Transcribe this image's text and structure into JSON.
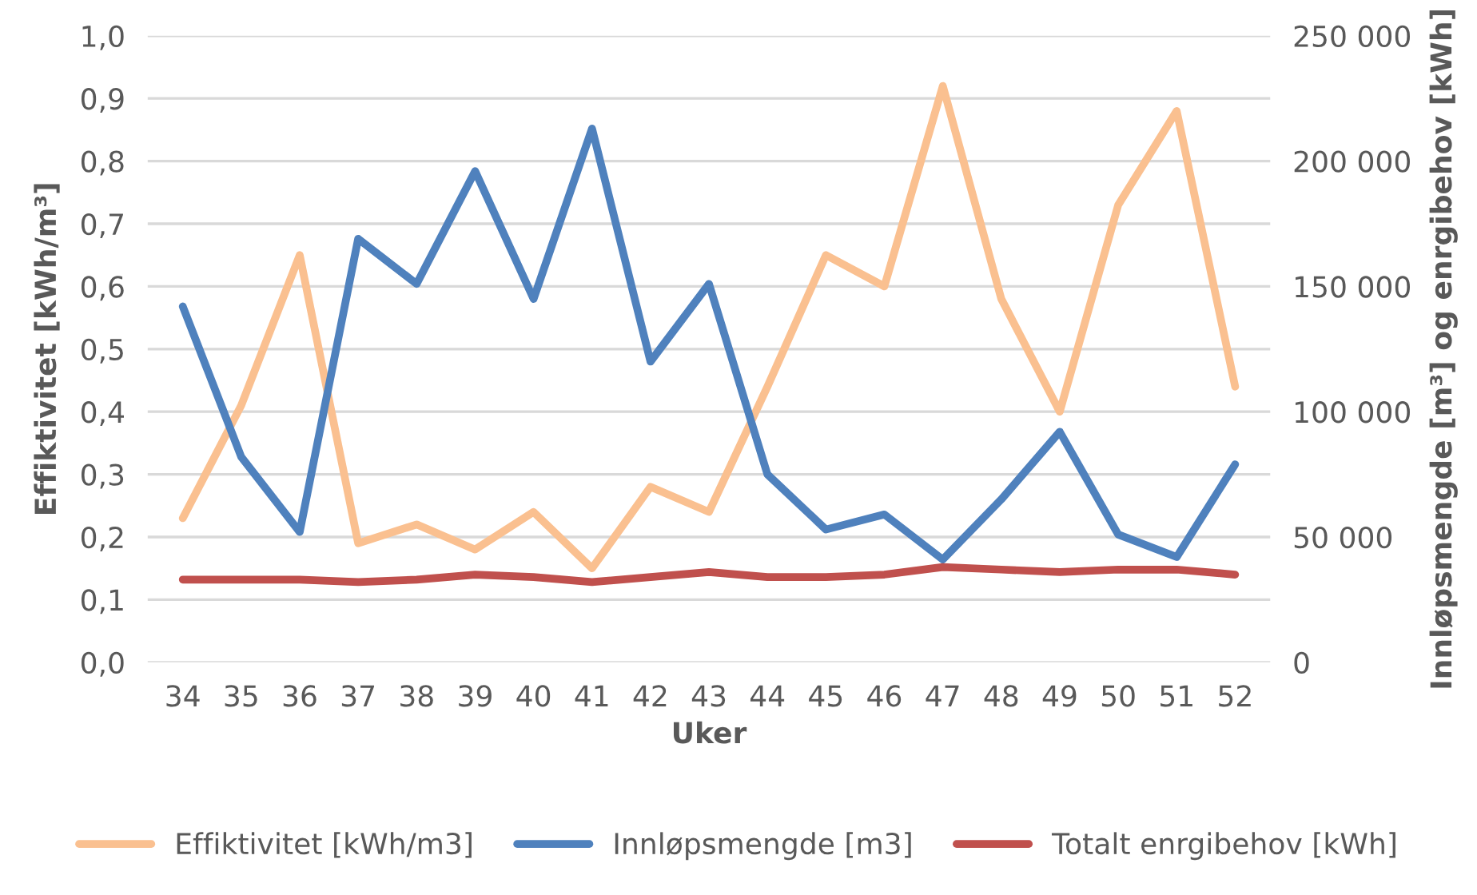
{
  "chart_data": {
    "type": "line",
    "xlabel": "Uker",
    "ylabel": "Effiktivitet [kWh/m³]",
    "y2label": "Innløpsmengde [m³] og enrgibehov [kWh]",
    "categories": [
      "34",
      "35",
      "36",
      "37",
      "38",
      "39",
      "40",
      "41",
      "42",
      "43",
      "44",
      "45",
      "46",
      "47",
      "48",
      "49",
      "50",
      "51",
      "52"
    ],
    "series": [
      {
        "name": "Effiktivitet [kWh/m3]",
        "color": "#fac090",
        "values": [
          0.23,
          0.41,
          0.65,
          0.19,
          0.22,
          0.18,
          0.24,
          0.15,
          0.28,
          0.24,
          0.44,
          0.65,
          0.6,
          0.92,
          0.58,
          0.4,
          0.73,
          0.88,
          0.44
        ]
      },
      {
        "name": "Innløpsmengde [m3]",
        "color": "#4f81bd",
        "axis": "y2",
        "values": [
          142000,
          82000,
          52000,
          169000,
          151000,
          196000,
          145000,
          213000,
          120000,
          151000,
          75000,
          53000,
          59000,
          41000,
          65000,
          92000,
          51000,
          42000,
          79000
        ]
      },
      {
        "name": "Totalt enrgibehov [kWh]",
        "color": "#c0504d",
        "axis": "y2",
        "values": [
          33000,
          33000,
          33000,
          32000,
          33000,
          35000,
          34000,
          32000,
          34000,
          36000,
          34000,
          34000,
          35000,
          38000,
          37000,
          36000,
          37000,
          37000,
          35000
        ]
      }
    ],
    "ylim": [
      0,
      1
    ],
    "yticks": [
      {
        "value": 0,
        "label": "0,0"
      },
      {
        "value": 0.1,
        "label": "0,1"
      },
      {
        "value": 0.2,
        "label": "0,2"
      },
      {
        "value": 0.3,
        "label": "0,3"
      },
      {
        "value": 0.4,
        "label": "0,4"
      },
      {
        "value": 0.5,
        "label": "0,5"
      },
      {
        "value": 0.6,
        "label": "0,6"
      },
      {
        "value": 0.7,
        "label": "0,7"
      },
      {
        "value": 0.8,
        "label": "0,8"
      },
      {
        "value": 0.9,
        "label": "0,9"
      },
      {
        "value": 1,
        "label": "1,0"
      }
    ],
    "y2lim": [
      0,
      250000
    ],
    "y2ticks": [
      {
        "value": 0,
        "label": "0"
      },
      {
        "value": 50000,
        "label": "50 000"
      },
      {
        "value": 100000,
        "label": "100 000"
      },
      {
        "value": 150000,
        "label": "150 000"
      },
      {
        "value": 200000,
        "label": "200 000"
      },
      {
        "value": 250000,
        "label": "250 000"
      }
    ],
    "grid": "y",
    "legend": "bottom",
    "marker": "none",
    "line_style": "solid"
  }
}
